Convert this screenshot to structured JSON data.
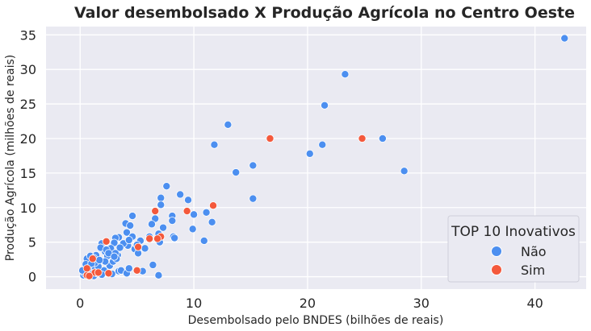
{
  "chart_data": {
    "type": "scatter",
    "title": "Valor desembolsado X Produção Agrícola no Centro Oeste",
    "xlabel": "Desembolsado pelo BNDES (bilhões de reais)",
    "ylabel": "Produção Agrícola (milhões de reais)",
    "xlim": [
      -3,
      44.5
    ],
    "ylim": [
      -1.8,
      36.2
    ],
    "xticks": [
      0,
      10,
      20,
      30,
      40
    ],
    "yticks": [
      0,
      5,
      10,
      15,
      20,
      25,
      30,
      35
    ],
    "grid": true,
    "legend": {
      "title": "TOP 10 Inovativos",
      "placement": "lower-right"
    },
    "series": [
      {
        "name": "Não",
        "color": "#4c8ff0",
        "points": [
          [
            42.6,
            34.5
          ],
          [
            23.3,
            29.3
          ],
          [
            21.5,
            24.8
          ],
          [
            13.0,
            22.0
          ],
          [
            11.8,
            19.1
          ],
          [
            26.6,
            20.0
          ],
          [
            20.2,
            17.8
          ],
          [
            21.3,
            19.1
          ],
          [
            15.2,
            16.1
          ],
          [
            13.7,
            15.1
          ],
          [
            28.5,
            15.3
          ],
          [
            15.2,
            11.3
          ],
          [
            7.6,
            13.1
          ],
          [
            8.8,
            11.9
          ],
          [
            9.5,
            11.1
          ],
          [
            7.1,
            11.4
          ],
          [
            7.1,
            10.4
          ],
          [
            10.0,
            9.0
          ],
          [
            11.1,
            9.3
          ],
          [
            11.6,
            7.9
          ],
          [
            9.9,
            6.9
          ],
          [
            10.9,
            5.2
          ],
          [
            8.1,
            8.8
          ],
          [
            8.1,
            8.1
          ],
          [
            6.6,
            8.4
          ],
          [
            6.3,
            7.6
          ],
          [
            7.3,
            7.1
          ],
          [
            6.9,
            6.2
          ],
          [
            6.1,
            5.8
          ],
          [
            7.0,
            5.0
          ],
          [
            8.2,
            5.8
          ],
          [
            8.3,
            5.6
          ],
          [
            4.6,
            8.8
          ],
          [
            4.0,
            7.7
          ],
          [
            4.4,
            7.4
          ],
          [
            4.1,
            6.4
          ],
          [
            4.6,
            5.8
          ],
          [
            5.3,
            5.2
          ],
          [
            4.2,
            4.5
          ],
          [
            5.7,
            4.1
          ],
          [
            6.4,
            1.7
          ],
          [
            6.9,
            0.2
          ],
          [
            3.4,
            5.7
          ],
          [
            3.1,
            5.6
          ],
          [
            3.0,
            4.9
          ],
          [
            2.7,
            4.1
          ],
          [
            2.2,
            3.6
          ],
          [
            1.9,
            4.8
          ],
          [
            1.8,
            4.2
          ],
          [
            2.3,
            3.9
          ],
          [
            1.4,
            3.1
          ],
          [
            0.6,
            2.6
          ],
          [
            0.5,
            1.8
          ],
          [
            1.1,
            1.4
          ],
          [
            0.8,
            0.7
          ],
          [
            0.3,
            0.2
          ],
          [
            1.2,
            0.1
          ],
          [
            2.1,
            0.9
          ],
          [
            3.4,
            0.8
          ],
          [
            3.6,
            0.9
          ],
          [
            4.1,
            0.5
          ],
          [
            4.3,
            1.2
          ],
          [
            5.5,
            0.8
          ],
          [
            2.6,
            1.6
          ],
          [
            2.9,
            2.2
          ],
          [
            3.3,
            3.1
          ],
          [
            1.6,
            1.5
          ],
          [
            1.3,
            2.0
          ],
          [
            0.9,
            3.0
          ],
          [
            2.4,
            3.0
          ],
          [
            3.1,
            3.4
          ],
          [
            0.4,
            0.5
          ],
          [
            1.9,
            0.3
          ],
          [
            2.8,
            0.4
          ],
          [
            3.2,
            2.6
          ],
          [
            3.8,
            4.8
          ],
          [
            4.8,
            4.0
          ],
          [
            5.1,
            3.4
          ],
          [
            1.2,
            2.7
          ],
          [
            0.7,
            1.2
          ],
          [
            1.5,
            0.5
          ],
          [
            2.2,
            2.2
          ],
          [
            2.5,
            3.4
          ],
          [
            3.0,
            2.9
          ],
          [
            3.5,
            4.2
          ],
          [
            4.3,
            5.3
          ],
          [
            5.0,
            4.6
          ],
          [
            0.2,
            0.9
          ],
          [
            1.0,
            1.9
          ],
          [
            1.7,
            2.4
          ]
        ]
      },
      {
        "name": "Sim",
        "color": "#f4593c",
        "points": [
          [
            16.7,
            20.0
          ],
          [
            24.8,
            20.0
          ],
          [
            11.7,
            10.3
          ],
          [
            9.4,
            9.5
          ],
          [
            6.6,
            9.5
          ],
          [
            7.1,
            5.8
          ],
          [
            6.8,
            5.5
          ],
          [
            6.1,
            5.5
          ],
          [
            5.1,
            4.3
          ],
          [
            2.3,
            5.1
          ],
          [
            5.0,
            0.9
          ],
          [
            1.1,
            2.6
          ],
          [
            0.6,
            1.2
          ],
          [
            0.6,
            0.2
          ],
          [
            1.3,
            0.6
          ],
          [
            2.5,
            0.5
          ],
          [
            1.6,
            0.6
          ],
          [
            0.8,
            0.1
          ]
        ]
      }
    ]
  }
}
